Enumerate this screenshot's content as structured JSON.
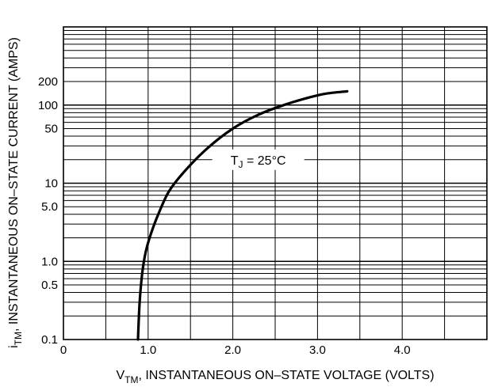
{
  "chart_data": {
    "type": "line",
    "x_scale": "linear",
    "y_scale": "log",
    "xlim": [
      0,
      5.0
    ],
    "ylim": [
      0.1,
      1000
    ],
    "x_ticks": [
      0,
      1.0,
      2.0,
      3.0,
      4.0
    ],
    "x_tick_labels": [
      "0",
      "1.0",
      "2.0",
      "3.0",
      "4.0"
    ],
    "y_ticks": [
      0.1,
      0.5,
      1.0,
      5.0,
      10,
      50,
      100,
      200
    ],
    "y_tick_labels": [
      "0.1",
      "0.5",
      "1.0",
      "5.0",
      "10",
      "50",
      "100",
      "200"
    ],
    "grid": true,
    "xlabel": {
      "main": "V",
      "subscript": "TM",
      "rest": ", INSTANTANEOUS ON–STATE VOLTAGE (VOLTS)"
    },
    "ylabel": {
      "main": "i",
      "subscript": "TM",
      "rest": ", INSTANTANEOUS ON–STATE CURRENT (AMPS)"
    },
    "annotation": {
      "main": "T",
      "subscript": "J",
      "rest": " = 25°C",
      "x": 2.3,
      "y": 20
    },
    "series": [
      {
        "x": [
          0.88,
          0.9,
          0.93,
          0.97,
          1.03,
          1.12,
          1.25,
          1.45,
          1.7,
          2.0,
          2.3,
          2.6,
          2.9,
          3.1,
          3.35
        ],
        "y": [
          0.1,
          0.3,
          0.7,
          1.3,
          2.2,
          4,
          8,
          15,
          28,
          50,
          75,
          100,
          125,
          140,
          150
        ]
      }
    ]
  }
}
